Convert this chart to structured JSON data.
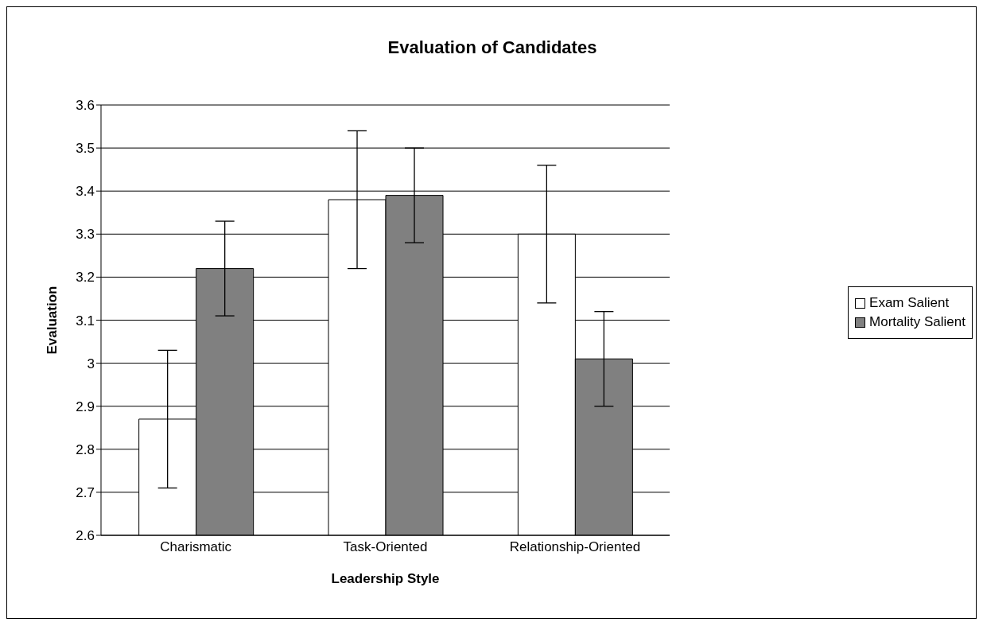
{
  "chart_data": {
    "type": "bar",
    "title": "Evaluation of Candidates",
    "xlabel": "Leadership Style",
    "ylabel": "Evaluation",
    "categories": [
      "Charismatic",
      "Task-Oriented",
      "Relationship-Oriented"
    ],
    "series": [
      {
        "name": "Exam Salient",
        "color": "#ffffff",
        "values": [
          2.87,
          3.38,
          3.3
        ],
        "errors": [
          0.16,
          0.16,
          0.16
        ]
      },
      {
        "name": "Mortality Salient",
        "color": "#808080",
        "values": [
          3.22,
          3.39,
          3.01
        ],
        "errors": [
          0.11,
          0.11,
          0.11
        ]
      }
    ],
    "ylim": [
      2.6,
      3.6
    ],
    "yticks": [
      2.6,
      2.7,
      2.8,
      2.9,
      3,
      3.1,
      3.2,
      3.3,
      3.4,
      3.5,
      3.6
    ],
    "grid": "y",
    "legend": "right"
  }
}
